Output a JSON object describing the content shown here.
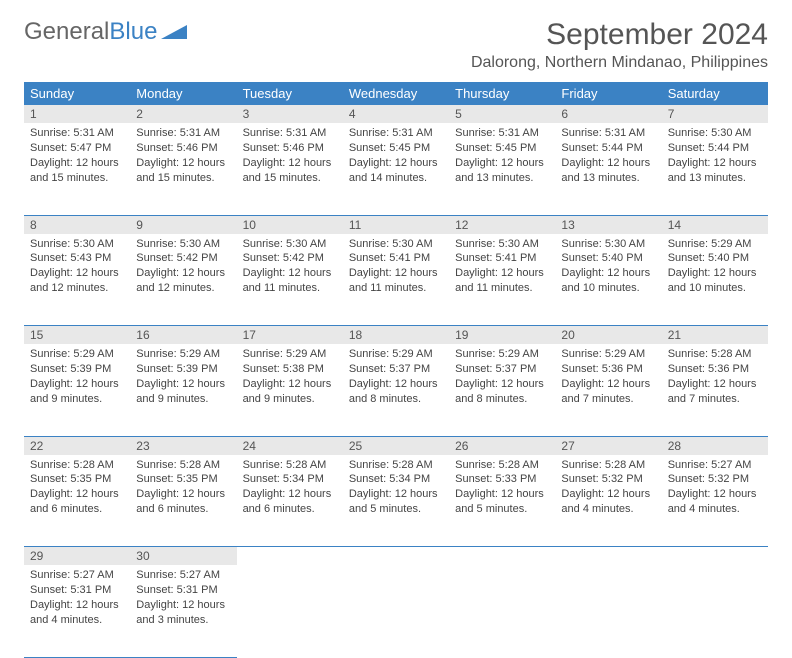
{
  "logo": {
    "text1": "General",
    "text2": "Blue"
  },
  "title": "September 2024",
  "location": "Dalorong, Northern Mindanao, Philippines",
  "colors": {
    "header_bg": "#3b82c4",
    "header_text": "#ffffff",
    "daynum_bg": "#e8e8e8",
    "text": "#444444",
    "border": "#3b82c4"
  },
  "day_labels": [
    "Sunday",
    "Monday",
    "Tuesday",
    "Wednesday",
    "Thursday",
    "Friday",
    "Saturday"
  ],
  "weeks": [
    [
      {
        "n": "1",
        "sunrise": "5:31 AM",
        "sunset": "5:47 PM",
        "daylight": "12 hours and 15 minutes."
      },
      {
        "n": "2",
        "sunrise": "5:31 AM",
        "sunset": "5:46 PM",
        "daylight": "12 hours and 15 minutes."
      },
      {
        "n": "3",
        "sunrise": "5:31 AM",
        "sunset": "5:46 PM",
        "daylight": "12 hours and 15 minutes."
      },
      {
        "n": "4",
        "sunrise": "5:31 AM",
        "sunset": "5:45 PM",
        "daylight": "12 hours and 14 minutes."
      },
      {
        "n": "5",
        "sunrise": "5:31 AM",
        "sunset": "5:45 PM",
        "daylight": "12 hours and 13 minutes."
      },
      {
        "n": "6",
        "sunrise": "5:31 AM",
        "sunset": "5:44 PM",
        "daylight": "12 hours and 13 minutes."
      },
      {
        "n": "7",
        "sunrise": "5:30 AM",
        "sunset": "5:44 PM",
        "daylight": "12 hours and 13 minutes."
      }
    ],
    [
      {
        "n": "8",
        "sunrise": "5:30 AM",
        "sunset": "5:43 PM",
        "daylight": "12 hours and 12 minutes."
      },
      {
        "n": "9",
        "sunrise": "5:30 AM",
        "sunset": "5:42 PM",
        "daylight": "12 hours and 12 minutes."
      },
      {
        "n": "10",
        "sunrise": "5:30 AM",
        "sunset": "5:42 PM",
        "daylight": "12 hours and 11 minutes."
      },
      {
        "n": "11",
        "sunrise": "5:30 AM",
        "sunset": "5:41 PM",
        "daylight": "12 hours and 11 minutes."
      },
      {
        "n": "12",
        "sunrise": "5:30 AM",
        "sunset": "5:41 PM",
        "daylight": "12 hours and 11 minutes."
      },
      {
        "n": "13",
        "sunrise": "5:30 AM",
        "sunset": "5:40 PM",
        "daylight": "12 hours and 10 minutes."
      },
      {
        "n": "14",
        "sunrise": "5:29 AM",
        "sunset": "5:40 PM",
        "daylight": "12 hours and 10 minutes."
      }
    ],
    [
      {
        "n": "15",
        "sunrise": "5:29 AM",
        "sunset": "5:39 PM",
        "daylight": "12 hours and 9 minutes."
      },
      {
        "n": "16",
        "sunrise": "5:29 AM",
        "sunset": "5:39 PM",
        "daylight": "12 hours and 9 minutes."
      },
      {
        "n": "17",
        "sunrise": "5:29 AM",
        "sunset": "5:38 PM",
        "daylight": "12 hours and 9 minutes."
      },
      {
        "n": "18",
        "sunrise": "5:29 AM",
        "sunset": "5:37 PM",
        "daylight": "12 hours and 8 minutes."
      },
      {
        "n": "19",
        "sunrise": "5:29 AM",
        "sunset": "5:37 PM",
        "daylight": "12 hours and 8 minutes."
      },
      {
        "n": "20",
        "sunrise": "5:29 AM",
        "sunset": "5:36 PM",
        "daylight": "12 hours and 7 minutes."
      },
      {
        "n": "21",
        "sunrise": "5:28 AM",
        "sunset": "5:36 PM",
        "daylight": "12 hours and 7 minutes."
      }
    ],
    [
      {
        "n": "22",
        "sunrise": "5:28 AM",
        "sunset": "5:35 PM",
        "daylight": "12 hours and 6 minutes."
      },
      {
        "n": "23",
        "sunrise": "5:28 AM",
        "sunset": "5:35 PM",
        "daylight": "12 hours and 6 minutes."
      },
      {
        "n": "24",
        "sunrise": "5:28 AM",
        "sunset": "5:34 PM",
        "daylight": "12 hours and 6 minutes."
      },
      {
        "n": "25",
        "sunrise": "5:28 AM",
        "sunset": "5:34 PM",
        "daylight": "12 hours and 5 minutes."
      },
      {
        "n": "26",
        "sunrise": "5:28 AM",
        "sunset": "5:33 PM",
        "daylight": "12 hours and 5 minutes."
      },
      {
        "n": "27",
        "sunrise": "5:28 AM",
        "sunset": "5:32 PM",
        "daylight": "12 hours and 4 minutes."
      },
      {
        "n": "28",
        "sunrise": "5:27 AM",
        "sunset": "5:32 PM",
        "daylight": "12 hours and 4 minutes."
      }
    ],
    [
      {
        "n": "29",
        "sunrise": "5:27 AM",
        "sunset": "5:31 PM",
        "daylight": "12 hours and 4 minutes."
      },
      {
        "n": "30",
        "sunrise": "5:27 AM",
        "sunset": "5:31 PM",
        "daylight": "12 hours and 3 minutes."
      },
      null,
      null,
      null,
      null,
      null
    ]
  ]
}
